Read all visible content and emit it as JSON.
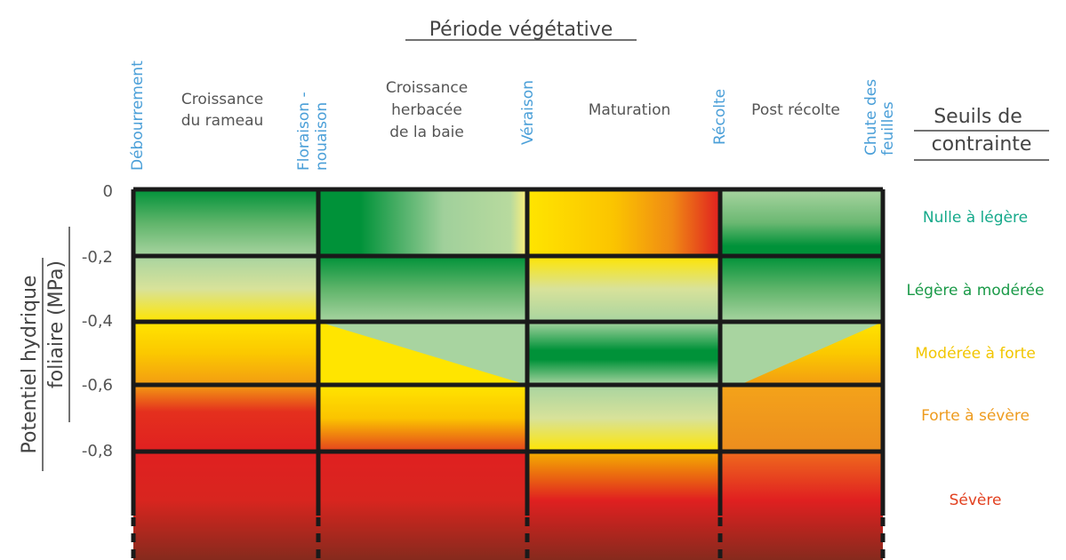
{
  "title": "Période végétative",
  "stages": [
    {
      "lines": [
        "Débourrement"
      ]
    },
    {
      "lines": [
        "Floraison -",
        "nouaison"
      ]
    },
    {
      "lines": [
        "Véraison"
      ]
    },
    {
      "lines": [
        "Récolte"
      ]
    },
    {
      "lines": [
        "Chute des",
        "feuilles"
      ]
    }
  ],
  "phases": [
    {
      "lines": [
        "Croissance",
        "du rameau"
      ]
    },
    {
      "lines": [
        "Croissance",
        "herbacée",
        "de la baie"
      ]
    },
    {
      "lines": [
        "Maturation"
      ]
    },
    {
      "lines": [
        "Post récolte"
      ]
    }
  ],
  "thresholds_title": {
    "lines": [
      "Seuils de",
      "contrainte"
    ]
  },
  "thresholds": [
    {
      "label": "Nulle à légère",
      "color": "#15a98a"
    },
    {
      "label": "Légère à modérée",
      "color": "#1a9a48"
    },
    {
      "label": "Modérée à forte",
      "color": "#f2c600"
    },
    {
      "label": "Forte à sévère",
      "color": "#ee9b1e"
    },
    {
      "label": "Sévère",
      "color": "#e2401f"
    }
  ],
  "y_axis": {
    "lines": [
      "Potentiel hydrique",
      "foliaire (MPa)"
    ],
    "ticks": [
      "0",
      "-0,2",
      "-0,4",
      "-0,6",
      "-0,8"
    ]
  }
}
